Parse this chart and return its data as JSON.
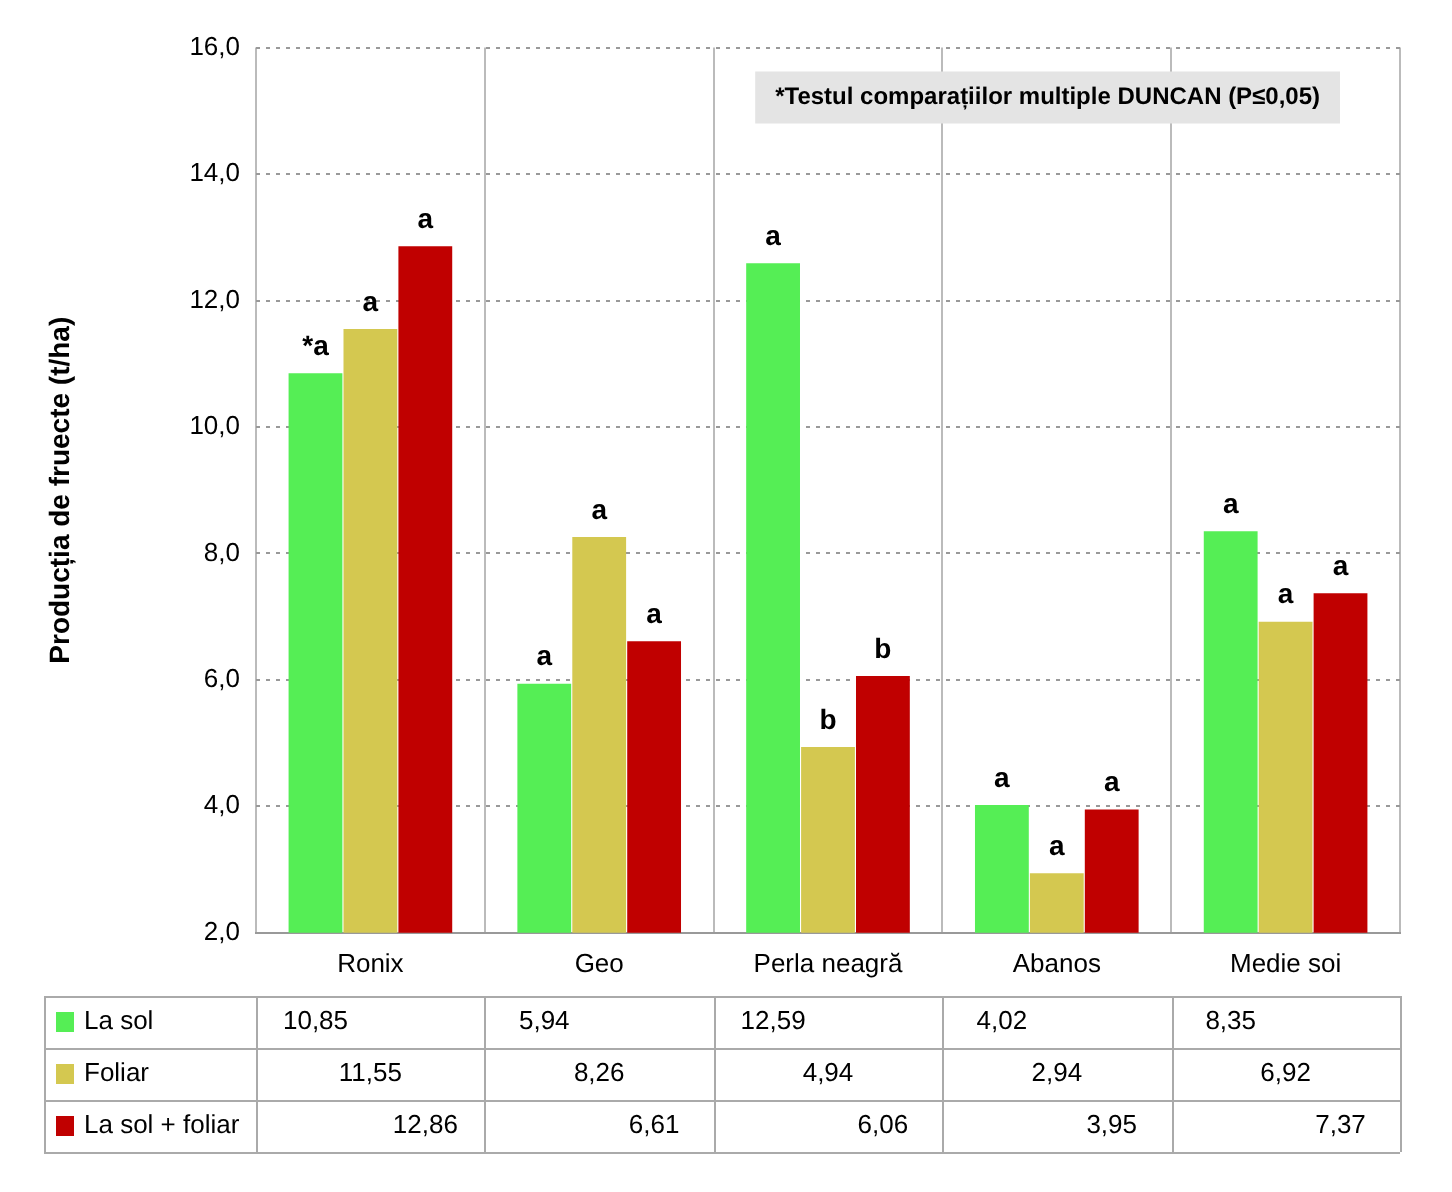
{
  "chart_data": {
    "type": "bar",
    "ylabel": "Producția de fruecte (t/ha)",
    "categories": [
      "Ronix",
      "Geo",
      "Perla neagră",
      "Abanos",
      "Medie soi"
    ],
    "series": [
      {
        "name": "La sol",
        "color": "#55ee55",
        "values": [
          10.85,
          5.94,
          12.59,
          4.02,
          8.35
        ],
        "value_labels": [
          "10,85",
          "5,94",
          "12,59",
          "4,02",
          "8,35"
        ]
      },
      {
        "name": "Foliar",
        "color": "#d4c850",
        "values": [
          11.55,
          8.26,
          4.94,
          2.94,
          6.92
        ],
        "value_labels": [
          "11,55",
          "8,26",
          "4,94",
          "2,94",
          "6,92"
        ]
      },
      {
        "name": "La sol + foliar",
        "color": "#c00000",
        "values": [
          12.86,
          6.61,
          6.06,
          3.95,
          7.37
        ],
        "value_labels": [
          "12,86",
          "6,61",
          "6,06",
          "3,95",
          "7,37"
        ]
      }
    ],
    "ylim": [
      2,
      16
    ],
    "yticks": [
      {
        "value": 2,
        "label": "2,0"
      },
      {
        "value": 4,
        "label": "4,0"
      },
      {
        "value": 6,
        "label": "6,0"
      },
      {
        "value": 8,
        "label": "8,0"
      },
      {
        "value": 10,
        "label": "10,0"
      },
      {
        "value": 12,
        "label": "12,0"
      },
      {
        "value": 14,
        "label": "14,0"
      },
      {
        "value": 16,
        "label": "16,0"
      }
    ],
    "grid": true,
    "legend": "bottom",
    "annotations": [
      "*Testul comparațiilor multiple DUNCAN (P≤0,05)",
      "*a",
      "a",
      "a",
      "a",
      "a",
      "a",
      "a",
      "b",
      "b",
      "a",
      "a",
      "a",
      "a",
      "a",
      "a"
    ]
  }
}
